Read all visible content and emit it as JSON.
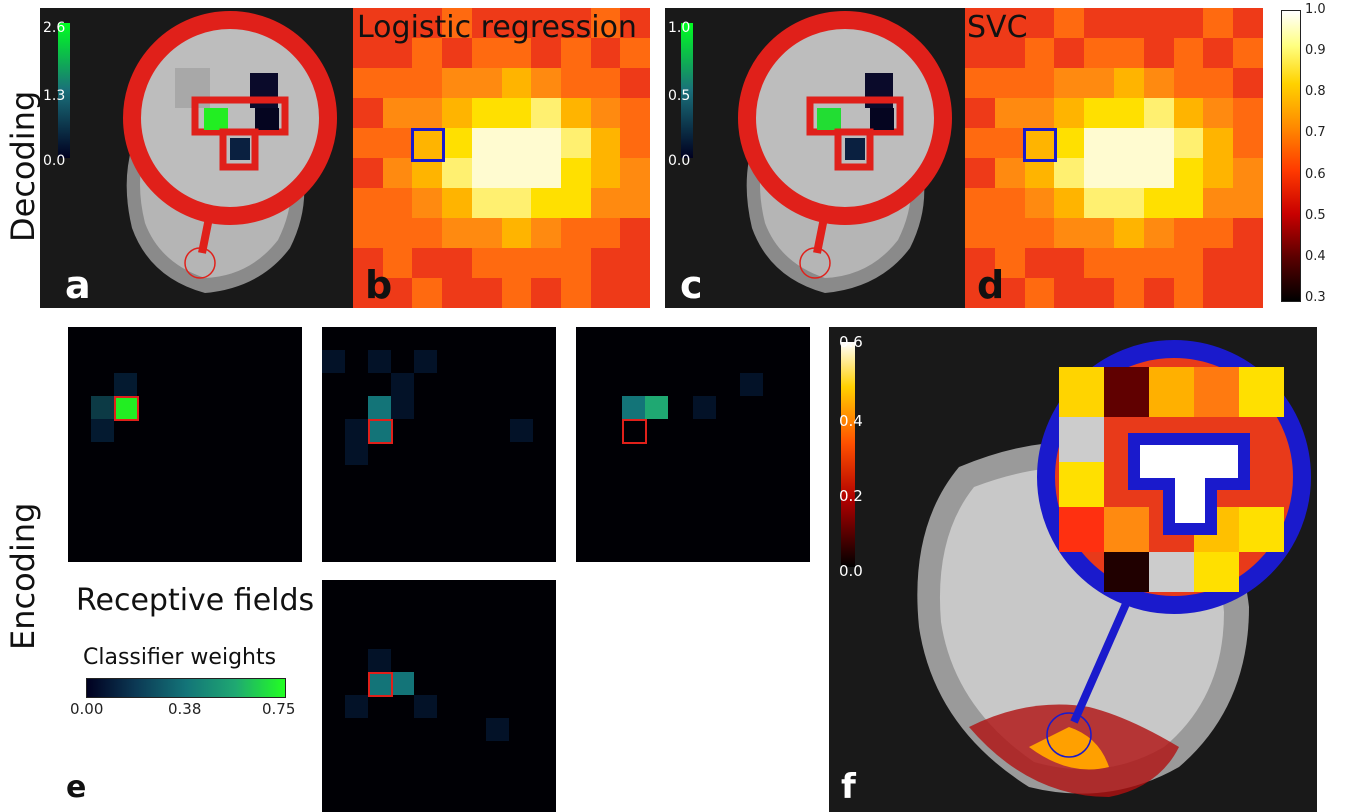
{
  "rows": {
    "top": "Decoding",
    "bottom": "Encoding"
  },
  "panels": {
    "a": {
      "letter": "a",
      "cbar_ticks": [
        "2.6",
        "1.3",
        "0.0"
      ]
    },
    "b": {
      "letter": "b",
      "title": "Logistic regression"
    },
    "c": {
      "letter": "c",
      "cbar_ticks": [
        "1.0",
        "0.5",
        "0.0"
      ]
    },
    "d": {
      "letter": "d",
      "title": "SVC"
    },
    "e": {
      "letter": "e",
      "title": "Receptive fields",
      "cbar_title": "Classifier weights",
      "cbar_ticks": [
        "0.00",
        "0.38",
        "0.75"
      ]
    },
    "f": {
      "letter": "f",
      "cbar_ticks": [
        "0.6",
        "0.4",
        "0.2",
        "0.0"
      ]
    }
  },
  "shared_colorbar": {
    "ticks": [
      "1.0",
      "0.9",
      "0.8",
      "0.7",
      "0.6",
      "0.5",
      "0.4",
      "0.3"
    ]
  },
  "colors": {
    "highlight_red": "#e0201a",
    "highlight_blue": "#1a1acc",
    "panel_bg": "#191919"
  }
}
